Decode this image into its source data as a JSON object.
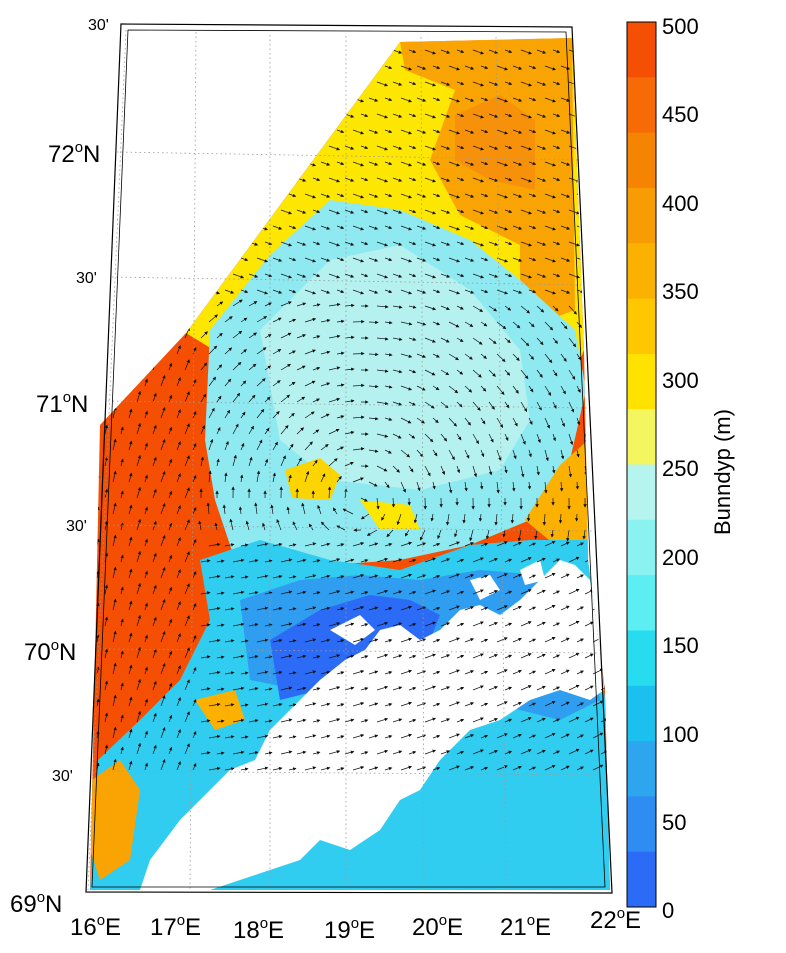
{
  "map": {
    "lat_labels": [
      {
        "deg": "72",
        "sup": "o",
        "hemi": "N"
      },
      {
        "text": "30'"
      },
      {
        "deg": "71",
        "sup": "o",
        "hemi": "N"
      },
      {
        "text": "30'"
      },
      {
        "deg": "70",
        "sup": "o",
        "hemi": "N"
      },
      {
        "text": "30'"
      },
      {
        "deg": "69",
        "sup": "o",
        "hemi": "N"
      }
    ],
    "top_left_label": "30'",
    "lon_labels": [
      {
        "deg": "16",
        "sup": "o",
        "hemi": "E"
      },
      {
        "deg": "17",
        "sup": "o",
        "hemi": "E"
      },
      {
        "deg": "18",
        "sup": "o",
        "hemi": "E"
      },
      {
        "deg": "19",
        "sup": "o",
        "hemi": "E"
      },
      {
        "deg": "20",
        "sup": "o",
        "hemi": "E"
      },
      {
        "deg": "21",
        "sup": "o",
        "hemi": "E"
      },
      {
        "deg": "22",
        "sup": "o",
        "hemi": "E"
      }
    ],
    "lat_range": [
      69,
      72.5
    ],
    "lon_range": [
      16,
      22
    ]
  },
  "colorbar": {
    "title": "Bunndyp (m)",
    "ticks": [
      "500",
      "450",
      "400",
      "350",
      "300",
      "250",
      "200",
      "150",
      "100",
      "50",
      "0"
    ],
    "range": [
      0,
      500
    ],
    "colors": [
      "#2b6bf5",
      "#2f8cf2",
      "#2ea6ef",
      "#1cc0ee",
      "#28dcf0",
      "#5ceef2",
      "#8af2f0",
      "#b5f4ef",
      "#f3f65e",
      "#ffe200",
      "#fec700",
      "#fbb100",
      "#f89c04",
      "#f58403",
      "#f66b06",
      "#f54f03"
    ]
  },
  "legend_colors": {
    "deep": "#f54f03",
    "shelf_yellow": "#fde600",
    "shallow_blue": "#2b6bf5",
    "mid_cyan": "#8ee9f0"
  }
}
